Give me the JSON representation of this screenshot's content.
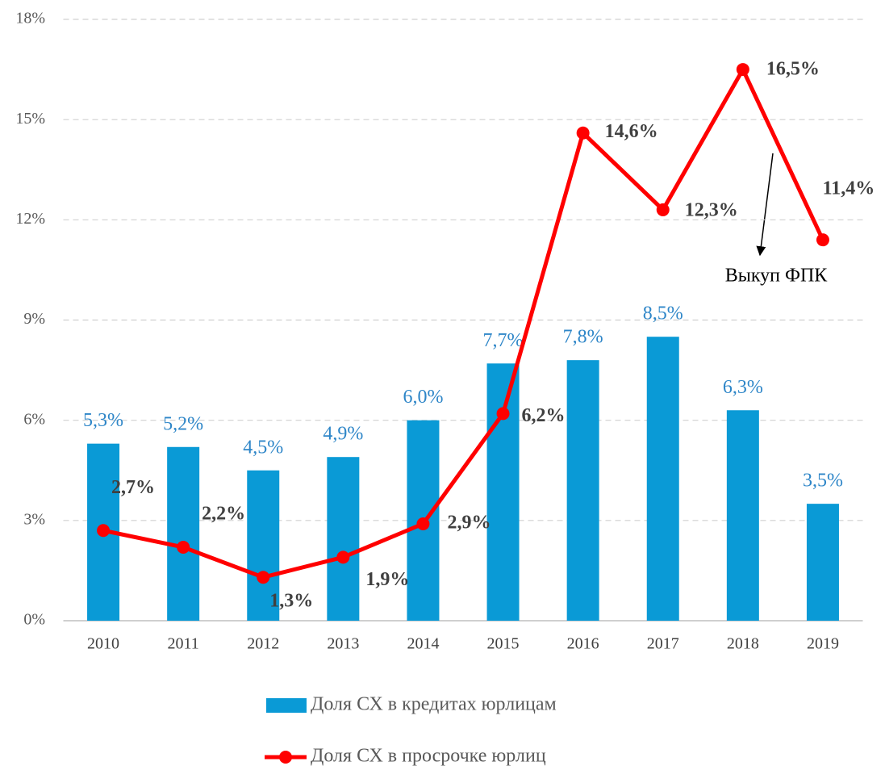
{
  "chart_data": {
    "type": "bar+line",
    "categories": [
      "2010",
      "2011",
      "2012",
      "2013",
      "2014",
      "2015",
      "2016",
      "2017",
      "2018",
      "2019"
    ],
    "series": [
      {
        "name": "Доля СХ в кредитах юрлицам",
        "type": "bar",
        "color": "#0a9ad6",
        "label_color": "#2e86c8",
        "values": [
          5.3,
          5.2,
          4.5,
          4.9,
          6.0,
          7.7,
          7.8,
          8.5,
          6.3,
          3.5
        ],
        "value_labels": [
          "5,3%",
          "5,2%",
          "4,5%",
          "4,9%",
          "6,0%",
          "7,7%",
          "7,8%",
          "8,5%",
          "6,3%",
          "3,5%"
        ]
      },
      {
        "name": "Доля СХ в просрочке юрлиц",
        "type": "line",
        "color": "#ff0000",
        "label_color": "#404040",
        "values": [
          2.7,
          2.2,
          1.3,
          1.9,
          2.9,
          6.2,
          14.6,
          12.3,
          16.5,
          11.4
        ],
        "value_labels": [
          "2,7%",
          "2,2%",
          "1,3%",
          "1,9%",
          "2,9%",
          "6,2%",
          "14,6%",
          "12,3%",
          "16,5%",
          "11,4%"
        ]
      }
    ],
    "ylim": [
      0,
      18
    ],
    "yticks": [
      {
        "value": 0,
        "label": "0%"
      },
      {
        "value": 3,
        "label": "3%"
      },
      {
        "value": 6,
        "label": "6%"
      },
      {
        "value": 9,
        "label": "9%"
      },
      {
        "value": 12,
        "label": "12%"
      },
      {
        "value": 15,
        "label": "15%"
      },
      {
        "value": 18,
        "label": "18%"
      }
    ],
    "grid": true,
    "annotation": "Выкуп ФПК",
    "legend": "bottom"
  }
}
